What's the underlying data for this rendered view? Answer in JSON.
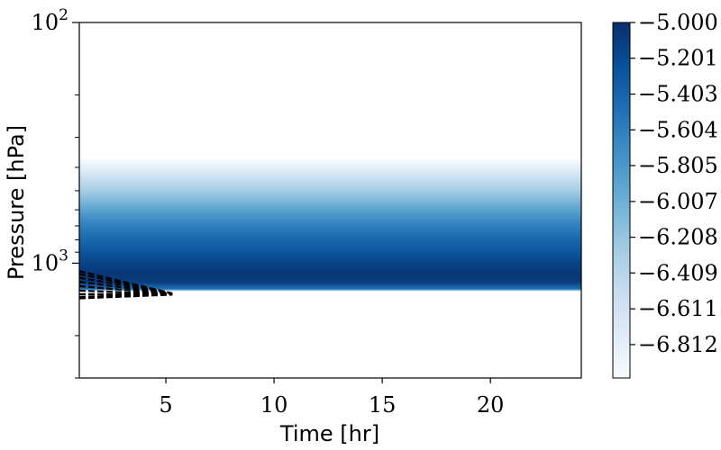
{
  "chart_data": {
    "type": "heatmap",
    "title": "",
    "xlabel": "Time [hr]",
    "ylabel": "Pressure [hPa]",
    "xlim": [
      1,
      24.2
    ],
    "ylim": [
      3000,
      100
    ],
    "y_scale": "log",
    "y_inverted": true,
    "x_ticks": [
      5,
      10,
      15,
      20
    ],
    "x_tick_labels": [
      "5",
      "10",
      "15",
      "20"
    ],
    "y_major_ticks": [
      100,
      1000
    ],
    "y_tick_labels": [
      {
        "base": "10",
        "exp": "2"
      },
      {
        "base": "10",
        "exp": "3"
      }
    ],
    "y_minor_ticks": [
      200,
      300,
      400,
      500,
      600,
      700,
      800,
      900,
      2000,
      3000
    ],
    "colormap": "Blues",
    "colormap_colors": [
      "#f7fbff",
      "#deebf7",
      "#c6dbef",
      "#9ecae1",
      "#6baed6",
      "#4292c6",
      "#2171b5",
      "#08519c",
      "#08306b"
    ],
    "colorbar": {
      "range": [
        -7.0,
        -5.0
      ],
      "ticks": [
        -5.0,
        -5.201,
        -5.403,
        -5.604,
        -5.805,
        -6.007,
        -6.208,
        -6.409,
        -6.611,
        -6.812
      ],
      "tick_labels": [
        "−5.000",
        "−5.201",
        "−5.403",
        "−5.604",
        "−5.805",
        "−6.007",
        "−6.208",
        "−6.409",
        "−6.611",
        "−6.812"
      ]
    },
    "field": {
      "description_p_hPa": [
        370,
        1310
      ],
      "profile": [
        {
          "p": 370,
          "value": -7.0
        },
        {
          "p": 420,
          "value": -6.7
        },
        {
          "p": 500,
          "value": -6.3
        },
        {
          "p": 600,
          "value": -5.9
        },
        {
          "p": 700,
          "value": -5.6
        },
        {
          "p": 850,
          "value": -5.35
        },
        {
          "p": 1000,
          "value": -5.15
        },
        {
          "p": 1100,
          "value": -5.05
        },
        {
          "p": 1200,
          "value": -5.1
        },
        {
          "p": 1280,
          "value": -5.5
        },
        {
          "p": 1310,
          "value": -7.0
        }
      ]
    },
    "contours": {
      "style": "dashed",
      "color": "#000000",
      "lines": [
        [
          [
            1.0,
            1080
          ],
          [
            5.3,
            1335
          ]
        ],
        [
          [
            1.0,
            1110
          ],
          [
            5.3,
            1338
          ]
        ],
        [
          [
            1.0,
            1150
          ],
          [
            5.3,
            1340
          ]
        ],
        [
          [
            1.0,
            1195
          ],
          [
            5.3,
            1342
          ]
        ],
        [
          [
            1.0,
            1245
          ],
          [
            5.3,
            1345
          ]
        ],
        [
          [
            1.0,
            1300
          ],
          [
            5.3,
            1347
          ]
        ],
        [
          [
            1.0,
            1345
          ],
          [
            5.3,
            1350
          ]
        ],
        [
          [
            1.0,
            1380
          ],
          [
            5.3,
            1350
          ]
        ],
        [
          [
            1.0,
            1400
          ],
          [
            5.3,
            1352
          ]
        ]
      ]
    }
  }
}
